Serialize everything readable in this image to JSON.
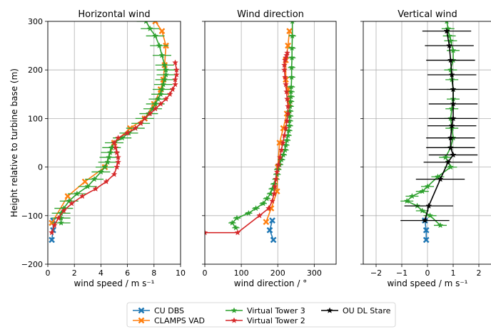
{
  "ylabel": "Height relative to turbine base (m)",
  "legend": [
    {
      "name": "CU DBS",
      "color": "#1f77b4",
      "marker": "x"
    },
    {
      "name": "CLAMPS VAD",
      "color": "#ff7f0e",
      "marker": "x"
    },
    {
      "name": "Virtual Tower 3",
      "color": "#2ca02c",
      "marker": "star"
    },
    {
      "name": "Virtual Tower 2",
      "color": "#d62728",
      "marker": "star"
    },
    {
      "name": "OU DL Stare",
      "color": "#000000",
      "marker": "star"
    }
  ],
  "chart_data": [
    {
      "type": "line",
      "title": "Horizontal wind",
      "xlabel": "wind speed / m s⁻¹",
      "ylabel": "Height relative to turbine base (m)",
      "xlim": [
        0,
        10
      ],
      "ylim": [
        -200,
        300
      ],
      "xticks": [
        0,
        2,
        4,
        6,
        8,
        10
      ],
      "yticks": [
        -200,
        -100,
        0,
        100,
        200,
        300
      ],
      "grid": true,
      "series": [
        {
          "name": "CU DBS",
          "x": [
            0.4,
            0.4,
            0.3
          ],
          "y": [
            -110,
            -130,
            -150
          ]
        },
        {
          "name": "CLAMPS VAD",
          "x": [
            0.3,
            1.5,
            2.8,
            4.3,
            5.0,
            6.2,
            7.3,
            8.0,
            8.5,
            8.7,
            8.8,
            8.9,
            8.6,
            8.1
          ],
          "y": [
            -115,
            -60,
            -30,
            0,
            50,
            80,
            100,
            130,
            160,
            180,
            210,
            250,
            280,
            300
          ]
        },
        {
          "name": "Virtual Tower 3",
          "x": [
            1.0,
            1.0,
            1.0,
            1.2,
            1.6,
            2.2,
            3.0,
            3.5,
            4.0,
            4.3,
            4.5,
            4.6,
            4.7,
            4.8,
            5.0,
            5.6,
            6.1,
            6.6,
            7.0,
            7.3,
            7.6,
            7.9,
            8.1,
            8.3,
            8.5,
            8.6,
            8.7,
            8.8,
            8.9,
            8.9,
            8.8,
            8.6,
            8.4,
            8.1,
            7.7,
            7.4
          ],
          "y": [
            -115,
            -105,
            -95,
            -85,
            -70,
            -55,
            -40,
            -25,
            -10,
            0,
            10,
            20,
            30,
            40,
            50,
            60,
            70,
            80,
            90,
            100,
            110,
            120,
            130,
            140,
            150,
            160,
            170,
            180,
            190,
            200,
            210,
            230,
            250,
            270,
            285,
            300
          ]
        },
        {
          "name": "Virtual Tower 2",
          "x": [
            0.3,
            0.5,
            0.8,
            1.2,
            1.8,
            2.6,
            3.6,
            4.4,
            5.0,
            5.2,
            5.3,
            5.3,
            5.2,
            5.1,
            5.0,
            5.3,
            6.0,
            6.6,
            7.0,
            7.3,
            7.7,
            8.1,
            8.5,
            8.9,
            9.2,
            9.4,
            9.6,
            9.6,
            9.7,
            9.7,
            9.6
          ],
          "y": [
            -135,
            -120,
            -105,
            -90,
            -75,
            -60,
            -45,
            -30,
            -15,
            0,
            10,
            20,
            30,
            40,
            50,
            60,
            70,
            80,
            90,
            100,
            110,
            120,
            130,
            140,
            150,
            160,
            170,
            180,
            190,
            200,
            215
          ]
        }
      ]
    },
    {
      "type": "line",
      "title": "Wind direction",
      "xlabel": "wind direction / °",
      "xlim": [
        0,
        360
      ],
      "ylim": [
        -200,
        300
      ],
      "xticks": [
        0,
        100,
        200,
        300
      ],
      "grid": true,
      "series": [
        {
          "name": "CU DBS",
          "x": [
            185,
            178,
            188
          ],
          "y": [
            -110,
            -130,
            -150
          ]
        },
        {
          "name": "CLAMPS VAD",
          "x": [
            168,
            182,
            198,
            200,
            205,
            215,
            225,
            232,
            228,
            222,
            222,
            228,
            232
          ],
          "y": [
            -113,
            -85,
            -50,
            0,
            50,
            80,
            110,
            130,
            160,
            180,
            220,
            250,
            280
          ]
        },
        {
          "name": "Virtual Tower 3",
          "x": [
            85,
            75,
            88,
            120,
            140,
            160,
            170,
            180,
            185,
            190,
            195,
            198,
            200,
            205,
            210,
            215,
            220,
            222,
            225,
            228,
            230,
            232,
            232,
            233,
            233,
            234,
            235,
            236,
            236,
            237,
            238,
            238,
            239,
            239,
            240,
            240
          ],
          "y": [
            -125,
            -115,
            -105,
            -95,
            -85,
            -75,
            -65,
            -55,
            -45,
            -35,
            -25,
            -15,
            -5,
            5,
            15,
            25,
            35,
            45,
            55,
            65,
            75,
            85,
            95,
            105,
            115,
            125,
            135,
            145,
            155,
            165,
            185,
            205,
            225,
            245,
            270,
            300
          ]
        },
        {
          "name": "Virtual Tower 2",
          "x": [
            0,
            90,
            150,
            175,
            185,
            190,
            192,
            195,
            198,
            202,
            206,
            210,
            214,
            218,
            222,
            225,
            228,
            228,
            226,
            224,
            222,
            220,
            218,
            218,
            220,
            222,
            224,
            226
          ],
          "y": [
            -135,
            -135,
            -100,
            -85,
            -70,
            -55,
            -40,
            -25,
            -10,
            5,
            20,
            35,
            50,
            65,
            80,
            95,
            110,
            125,
            140,
            155,
            170,
            185,
            200,
            210,
            220,
            225,
            230,
            235
          ]
        }
      ]
    },
    {
      "type": "line",
      "title": "Vertical wind",
      "xlabel": "wind speed / m s⁻¹",
      "xlim": [
        -2.5,
        2.5
      ],
      "ylim": [
        -200,
        300
      ],
      "xticks": [
        -2,
        -1,
        0,
        1,
        2
      ],
      "grid": true,
      "series": [
        {
          "name": "CU DBS",
          "x": [
            -0.1,
            -0.05,
            -0.05
          ],
          "y": [
            -110,
            -130,
            -150
          ]
        },
        {
          "name": "Virtual Tower 3",
          "x": [
            0.5,
            0.1,
            -0.2,
            -0.4,
            -0.8,
            -0.6,
            -0.2,
            0.0,
            0.4,
            0.9,
            0.7,
            0.9,
            1.0,
            0.95,
            0.9,
            0.95,
            1.0,
            1.0,
            0.95,
            0.9,
            1.0,
            1.0,
            0.9,
            0.85,
            0.8,
            0.75
          ],
          "y": [
            -120,
            -100,
            -90,
            -80,
            -70,
            -60,
            -50,
            -40,
            -20,
            0,
            20,
            40,
            60,
            80,
            100,
            120,
            140,
            160,
            180,
            200,
            220,
            240,
            260,
            270,
            285,
            300
          ]
        },
        {
          "name": "OU DL Stare",
          "x": [
            -0.1,
            0.05,
            0.5,
            0.8,
            1.0,
            0.9,
            0.9,
            0.95,
            1.0,
            1.0,
            1.0,
            0.95,
            0.9,
            0.85,
            0.75
          ],
          "y": [
            -110,
            -80,
            -25,
            10,
            25,
            40,
            60,
            85,
            100,
            130,
            160,
            190,
            220,
            250,
            280
          ]
        }
      ]
    }
  ]
}
